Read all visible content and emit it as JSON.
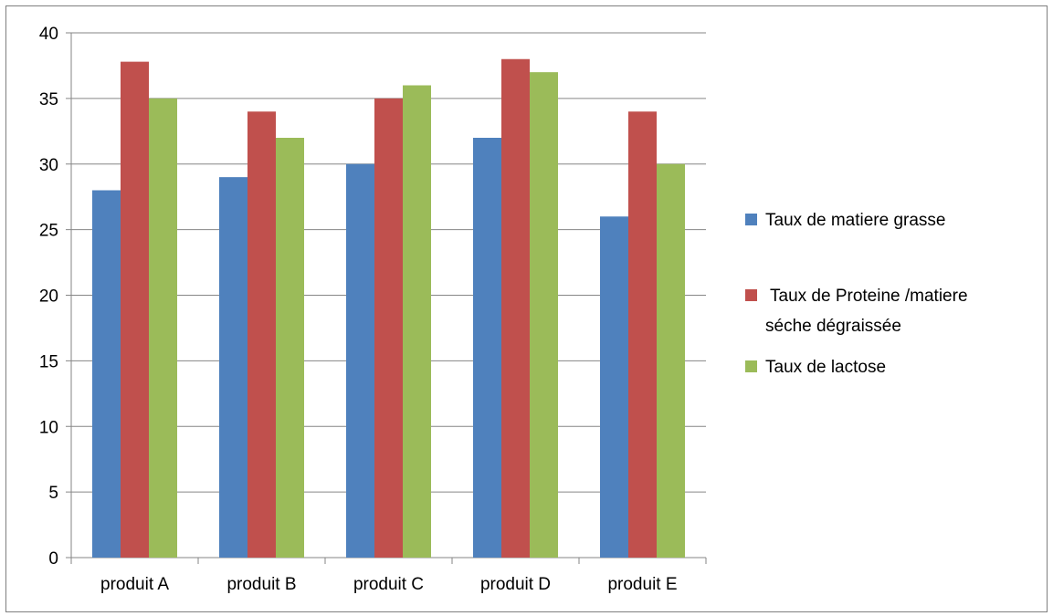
{
  "chart_data": {
    "type": "bar",
    "title": "",
    "xlabel": "",
    "ylabel": "",
    "ylim": [
      0,
      40
    ],
    "yticks": [
      0,
      5,
      10,
      15,
      20,
      25,
      30,
      35,
      40
    ],
    "grid": true,
    "legend_position": "right",
    "categories": [
      "produit A",
      "produit B",
      "produit C",
      "produit D",
      "produit E"
    ],
    "series": [
      {
        "name": "Taux de matiere grasse",
        "color": "#4F81BD",
        "values": [
          28,
          29,
          30,
          32,
          26
        ]
      },
      {
        "name": "Taux de Proteine /matiere séche dégraissée",
        "legend_lines": [
          "Taux de Proteine /matiere",
          "séche dégraissée"
        ],
        "color": "#C0504D",
        "values": [
          37.8,
          34,
          35,
          38,
          34
        ]
      },
      {
        "name": "Taux de lactose",
        "color": "#9BBB59",
        "values": [
          35,
          32,
          36,
          37,
          30
        ]
      }
    ]
  }
}
